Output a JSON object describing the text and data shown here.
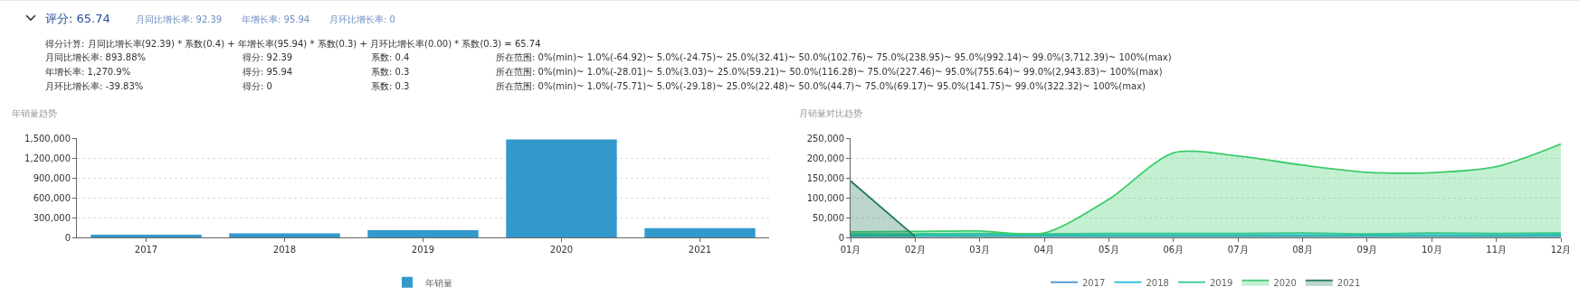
{
  "chart_data": [
    {
      "type": "other",
      "title": "评分: 65.74",
      "annotations": [
        "月同比增长率: 92.39",
        "年增长率: 95.94",
        "月环比增长率: 0",
        "得分计算: 月同比增长率(92.39) * 系数(0.4) + 年增长率(95.94) * 系数(0.3) + 月环比增长率(0.00) * 系数(0.3) = 65.74",
        "月同比增长率: 893.88%",
        "得分: 92.39",
        "系数: 0.4",
        "所在范围: 0%(min)~ 1.0%(-64.92)~ 5.0%(-24.75)~ 25.0%(32.41)~ 50.0%(102.76)~ 75.0%(238.95)~ 95.0%(992.14)~ 99.0%(3,712.39)~ 100%(max)",
        "年增长率: 1,270.9%",
        "得分: 95.94",
        "系数: 0.3",
        "所在范围: 0%(min)~ 1.0%(-28.01)~ 5.0%(3.03)~ 25.0%(59.21)~ 50.0%(116.28)~ 75.0%(227.46)~ 95.0%(755.64)~ 99.0%(2,943.83)~ 100%(max)",
        "月环比增长率: -39.83%",
        "得分: 0",
        "系数: 0.3",
        "所在范围: 0%(min)~ 1.0%(-75.71)~ 5.0%(-29.18)~ 25.0%(22.48)~ 50.0%(44.7)~ 75.0%(69.17)~ 95.0%(141.75)~ 99.0%(322.32)~ 100%(max)"
      ]
    },
    {
      "type": "bar",
      "title": "年销量趋势",
      "categories": [
        "2017",
        "2018",
        "2019",
        "2020",
        "2021"
      ],
      "series": [
        {
          "name": "年销量",
          "color": "#3399cc",
          "values": [
            40000,
            60000,
            110000,
            1480000,
            140000
          ]
        }
      ],
      "ylim": [
        0,
        1500000
      ],
      "yticks": [
        {
          "value": 0,
          "label": "0"
        },
        {
          "value": 300000,
          "label": "300,000"
        },
        {
          "value": 600000,
          "label": "600,000"
        },
        {
          "value": 900000,
          "label": "900,000"
        },
        {
          "value": 1200000,
          "label": "1,200,000"
        },
        {
          "value": 1500000,
          "label": "1,500,000"
        }
      ],
      "grid": "y",
      "legend": "bottom"
    },
    {
      "type": "line",
      "title": "月销量对比趋势",
      "categories": [
        "01月",
        "02月",
        "03月",
        "04月",
        "05月",
        "06月",
        "07月",
        "08月",
        "09月",
        "10月",
        "11月",
        "12月"
      ],
      "series": [
        {
          "name": "2017",
          "color": "#3a8fd0",
          "values": [
            3000,
            3000,
            3000,
            3000,
            3000,
            3000,
            3000,
            3000,
            3000,
            3000,
            3000,
            3000
          ]
        },
        {
          "name": "2018",
          "color": "#1fb8e0",
          "values": [
            5000,
            5000,
            7000,
            6000,
            6000,
            6000,
            6000,
            6000,
            6000,
            6000,
            6000,
            7000
          ]
        },
        {
          "name": "2019",
          "color": "#2cc49a",
          "values": [
            9000,
            9000,
            10000,
            9000,
            10000,
            10000,
            10000,
            11000,
            9000,
            11000,
            10000,
            11000
          ]
        },
        {
          "name": "2020",
          "type": "area",
          "color": "#3ccc6a",
          "values": [
            14000,
            15000,
            16000,
            11000,
            96000,
            213000,
            205000,
            182000,
            164000,
            163000,
            178000,
            235000
          ]
        },
        {
          "name": "2021",
          "type": "area",
          "color": "#1f7a5a",
          "values": [
            142000,
            2000,
            null,
            null,
            null,
            null,
            null,
            null,
            null,
            null,
            null,
            null
          ]
        }
      ],
      "ylim": [
        0,
        250000
      ],
      "yticks": [
        {
          "value": 0,
          "label": "0"
        },
        {
          "value": 50000,
          "label": "50,000"
        },
        {
          "value": 100000,
          "label": "100,000"
        },
        {
          "value": 150000,
          "label": "150,000"
        },
        {
          "value": 200000,
          "label": "200,000"
        },
        {
          "value": 250000,
          "label": "250,000"
        }
      ],
      "grid": "y",
      "legend": "bottom"
    }
  ]
}
